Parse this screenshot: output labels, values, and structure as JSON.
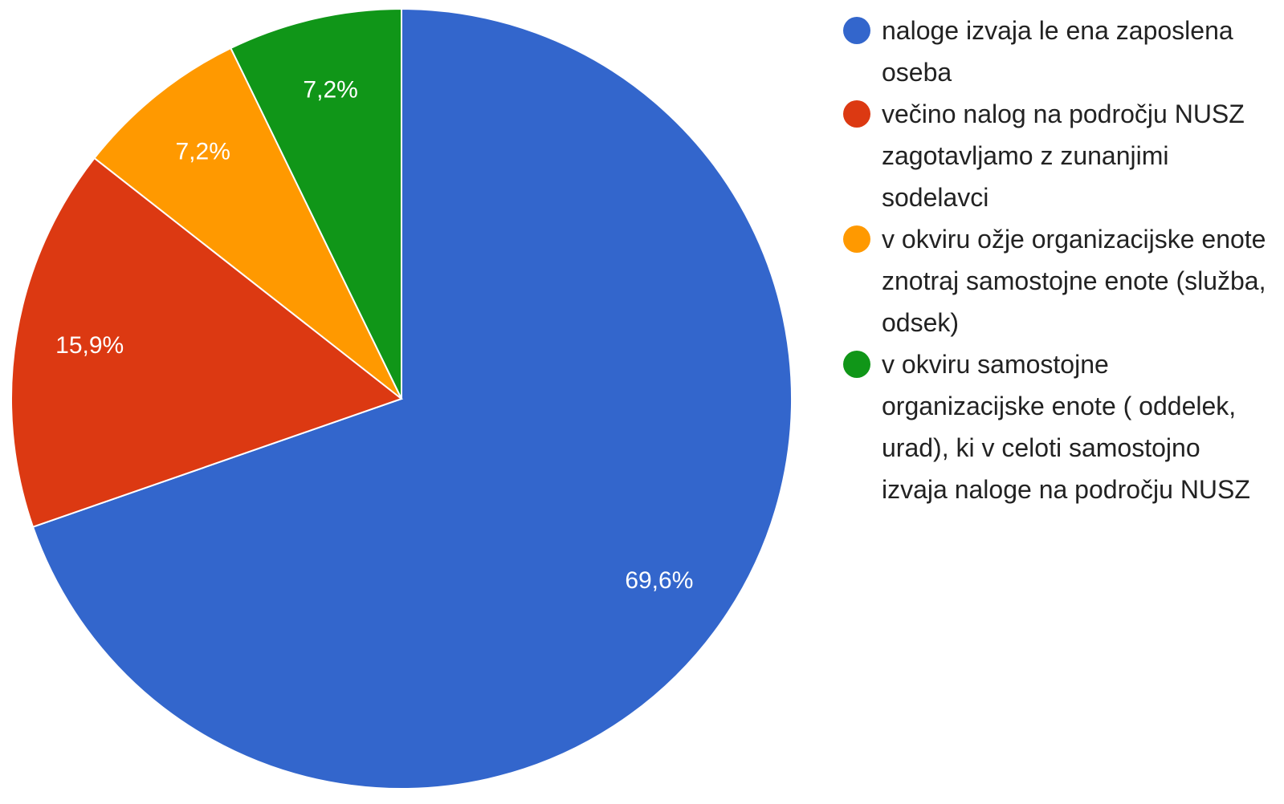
{
  "chart_data": {
    "type": "pie",
    "categories": [
      "naloge izvaja le ena zaposlena oseba",
      "večino nalog na področju NUSZ zagotavljamo z zunanjimi sodelavci",
      "v okviru ožje organizacijske enote znotraj samostojne enote (služba, odsek)",
      "v okviru samostojne organizacijske enote ( oddelek, urad), ki v celoti samostojno izvaja naloge na področju NUSZ"
    ],
    "values": [
      69.6,
      15.9,
      7.2,
      7.2
    ],
    "value_labels": [
      "69,6%",
      "15,9%",
      "7,2%",
      "7,2%"
    ],
    "colors": [
      "#3366cc",
      "#dc3912",
      "#ff9900",
      "#109618"
    ],
    "legend": "right"
  }
}
